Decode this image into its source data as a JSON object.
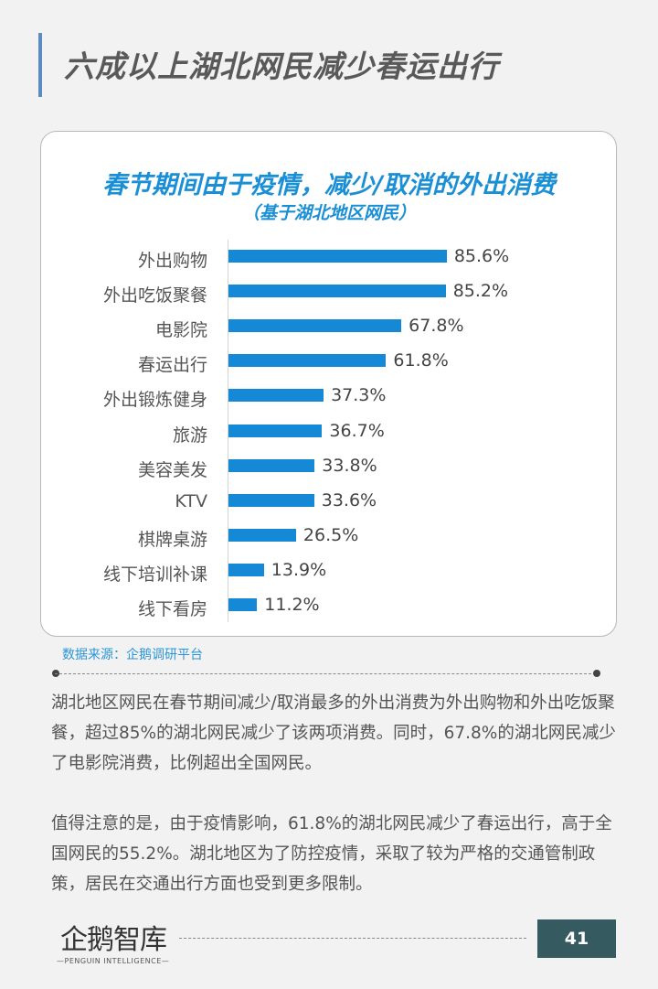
{
  "page": {
    "title": "六成以上湖北网民减少春运出行",
    "page_number": "41",
    "accent_color": "#5b8bc0"
  },
  "chart_data": {
    "type": "bar",
    "orientation": "horizontal",
    "title": "春节期间由于疫情，减少/取消的外出消费",
    "subtitle": "（基于湖北地区网民）",
    "categories": [
      "外出购物",
      "外出吃饭聚餐",
      "电影院",
      "春运出行",
      "外出锻炼健身",
      "旅游",
      "美容美发",
      "KTV",
      "棋牌桌游",
      "线下培训补课",
      "线下看房"
    ],
    "values": [
      85.6,
      85.2,
      67.8,
      61.8,
      37.3,
      36.7,
      33.8,
      33.6,
      26.5,
      13.9,
      11.2
    ],
    "value_labels": [
      "85.6%",
      "85.2%",
      "67.8%",
      "61.8%",
      "37.3%",
      "36.7%",
      "33.8%",
      "33.6%",
      "26.5%",
      "13.9%",
      "11.2%"
    ],
    "unit": "%",
    "xlabel": "",
    "ylabel": "",
    "grid": false,
    "legend": false,
    "bar_color": "#1589d6"
  },
  "source": "数据来源：企鹅调研平台",
  "paragraphs": [
    "湖北地区网民在春节期间减少/取消最多的外出消费为外出购物和外出吃饭聚餐，超过85%的湖北网民减少了该两项消费。同时，67.8%的湖北网民减少了电影院消费，比例超出全国网民。",
    "值得注意的是，由于疫情影响，61.8%的湖北网民减少了春运出行，高于全国网民的55.2%。湖北地区为了防控疫情，采取了较为严格的交通管制政策，居民在交通出行方面也受到更多限制。"
  ],
  "footer": {
    "logo_text": "企鹅智库",
    "logo_subtitle": "—PENGUIN  INTELLIGENCE—"
  }
}
